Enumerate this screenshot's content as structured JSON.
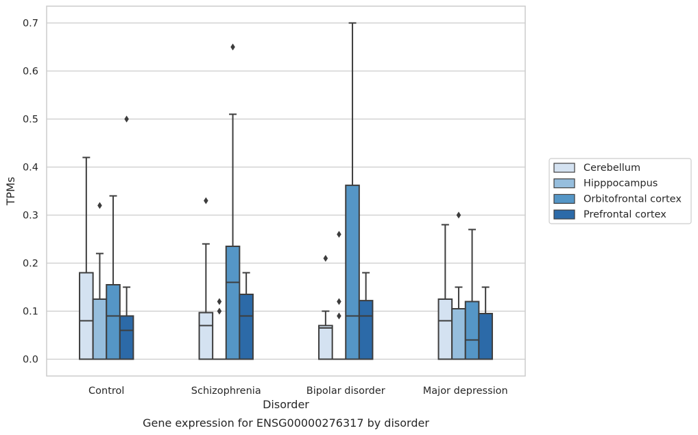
{
  "chart_data": {
    "type": "box",
    "title": "",
    "xlabel": "Disorder",
    "ylabel": "TPMs",
    "caption": "Gene expression for ENSG00000276317 by disorder",
    "ylim": [
      -0.035,
      0.735
    ],
    "yticks": [
      0.0,
      0.1,
      0.2,
      0.3,
      0.4,
      0.5,
      0.6,
      0.7
    ],
    "ytick_labels": [
      "0.0",
      "0.1",
      "0.2",
      "0.3",
      "0.4",
      "0.5",
      "0.6",
      "0.7"
    ],
    "grid": "horizontal",
    "legend_position": "right",
    "categories": [
      "Control",
      "Schizophrenia",
      "Bipolar disorder",
      "Major depression"
    ],
    "series": [
      {
        "name": "Cerebellum",
        "color": "#d4e2f1",
        "boxes": [
          {
            "min": 0.0,
            "q1": 0.0,
            "median": 0.08,
            "q3": 0.18,
            "max": 0.42,
            "outliers": []
          },
          {
            "min": 0.0,
            "q1": 0.0,
            "median": 0.07,
            "q3": 0.097,
            "max": 0.24,
            "outliers": [
              0.33
            ]
          },
          {
            "min": 0.0,
            "q1": 0.0,
            "median": 0.065,
            "q3": 0.07,
            "max": 0.1,
            "outliers": [
              0.21
            ]
          },
          {
            "min": 0.0,
            "q1": 0.0,
            "median": 0.08,
            "q3": 0.125,
            "max": 0.28,
            "outliers": []
          }
        ]
      },
      {
        "name": "Hipppocampus",
        "color": "#96bedd",
        "boxes": [
          {
            "min": 0.0,
            "q1": 0.0,
            "median": 0.0,
            "q3": 0.125,
            "max": 0.22,
            "outliers": [
              0.32
            ]
          },
          {
            "min": 0.0,
            "q1": 0.0,
            "median": 0.0,
            "q3": 0.0,
            "max": 0.0,
            "outliers": [
              0.1,
              0.12
            ]
          },
          {
            "min": 0.0,
            "q1": 0.0,
            "median": 0.0,
            "q3": 0.0,
            "max": 0.0,
            "outliers": [
              0.09,
              0.12,
              0.26
            ]
          },
          {
            "min": 0.0,
            "q1": 0.0,
            "median": 0.0,
            "q3": 0.105,
            "max": 0.15,
            "outliers": [
              0.3
            ]
          }
        ]
      },
      {
        "name": "Orbitofrontal cortex",
        "color": "#5596c6",
        "boxes": [
          {
            "min": 0.0,
            "q1": 0.0,
            "median": 0.09,
            "q3": 0.155,
            "max": 0.34,
            "outliers": []
          },
          {
            "min": 0.0,
            "q1": 0.0,
            "median": 0.16,
            "q3": 0.235,
            "max": 0.51,
            "outliers": [
              0.65
            ]
          },
          {
            "min": 0.0,
            "q1": 0.0,
            "median": 0.09,
            "q3": 0.362,
            "max": 0.7,
            "outliers": []
          },
          {
            "min": 0.0,
            "q1": 0.0,
            "median": 0.04,
            "q3": 0.12,
            "max": 0.27,
            "outliers": []
          }
        ]
      },
      {
        "name": "Prefrontal cortex",
        "color": "#2c6aa8",
        "boxes": [
          {
            "min": 0.0,
            "q1": 0.0,
            "median": 0.06,
            "q3": 0.09,
            "max": 0.15,
            "outliers": [
              0.5
            ]
          },
          {
            "min": 0.0,
            "q1": 0.0,
            "median": 0.09,
            "q3": 0.135,
            "max": 0.18,
            "outliers": []
          },
          {
            "min": 0.0,
            "q1": 0.0,
            "median": 0.09,
            "q3": 0.122,
            "max": 0.18,
            "outliers": []
          },
          {
            "min": 0.0,
            "q1": 0.0,
            "median": 0.0,
            "q3": 0.095,
            "max": 0.15,
            "outliers": []
          }
        ]
      }
    ]
  },
  "colors": {
    "grid": "#cccccc",
    "frame": "#cccccc",
    "box_edge": "#3d3d3d",
    "text": "#262626"
  }
}
